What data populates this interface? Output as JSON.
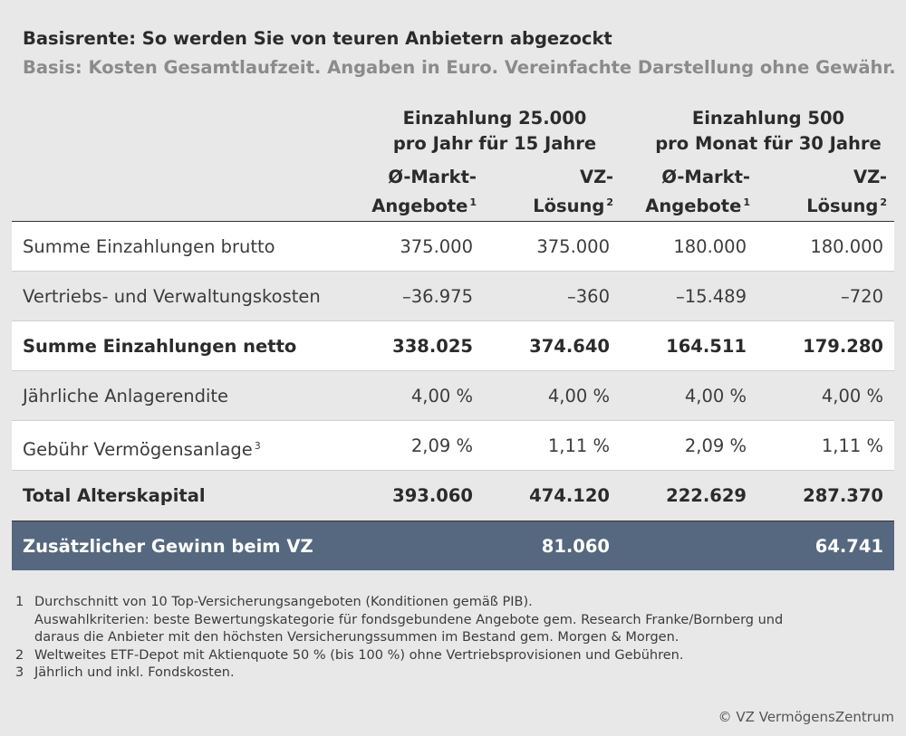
{
  "header": {
    "title": "Basisrente: So werden Sie von teuren Anbietern abgezockt",
    "subtitle": "Basis: Kosten Gesamtlaufzeit. Angaben in Euro. Vereinfachte Darstellung ohne Gewähr."
  },
  "groups": [
    {
      "line1": "Einzahlung 25.000",
      "line2": "pro Jahr für 15 Jahre"
    },
    {
      "line1": "Einzahlung 500",
      "line2": "pro Monat für 30 Jahre"
    }
  ],
  "columns": [
    {
      "line1": "Ø-Markt-",
      "line2": "Angebote",
      "note": "1"
    },
    {
      "line1": "VZ-",
      "line2": "Lösung",
      "note": "2"
    },
    {
      "line1": "Ø-Markt-",
      "line2": "Angebote",
      "note": "1"
    },
    {
      "line1": "VZ-",
      "line2": "Lösung",
      "note": "2"
    }
  ],
  "rows": [
    {
      "label": "Summe Einzahlungen brutto",
      "note": "",
      "values": [
        "375.000",
        "375.000",
        "180.000",
        "180.000"
      ]
    },
    {
      "label": "Vertriebs- und Verwaltungskosten",
      "note": "",
      "values": [
        "–36.975",
        "–360",
        "–15.489",
        "–720"
      ]
    },
    {
      "label": "Summe Einzahlungen netto",
      "note": "",
      "values": [
        "338.025",
        "374.640",
        "164.511",
        "179.280"
      ]
    },
    {
      "label": "Jährliche Anlagerendite",
      "note": "",
      "values": [
        "4,00 %",
        "4,00 %",
        "4,00 %",
        "4,00 %"
      ]
    },
    {
      "label": "Gebühr Vermögensanlage",
      "note": "3",
      "values": [
        "2,09 %",
        "1,11 %",
        "2,09 %",
        "1,11 %"
      ]
    },
    {
      "label": "Total Alterskapital",
      "note": "",
      "values": [
        "393.060",
        "474.120",
        "222.629",
        "287.370"
      ]
    }
  ],
  "summary": {
    "label": "Zusätzlicher Gewinn beim VZ",
    "values": [
      "81.060",
      "64.741"
    ]
  },
  "footnotes": [
    {
      "num": "1",
      "lines": [
        "Durchschnitt von 10 Top-Versicherungsangeboten (Konditionen gemäß PIB).",
        "Auswahlkriterien: beste Bewertungskategorie für fondsgebundene Angebote gem. Research Franke/Bornberg und",
        "daraus die Anbieter mit den höchsten Versicherungssummen im Bestand gem. Morgen & Morgen."
      ]
    },
    {
      "num": "2",
      "lines": [
        "Weltweites ETF-Depot mit Aktienquote 50 % (bis 100 %) ohne Vertriebsprovisionen und Gebühren."
      ]
    },
    {
      "num": "3",
      "lines": [
        "Jährlich und inkl. Fondskosten."
      ]
    }
  ],
  "copyright": "© VZ VermögensZentrum"
}
